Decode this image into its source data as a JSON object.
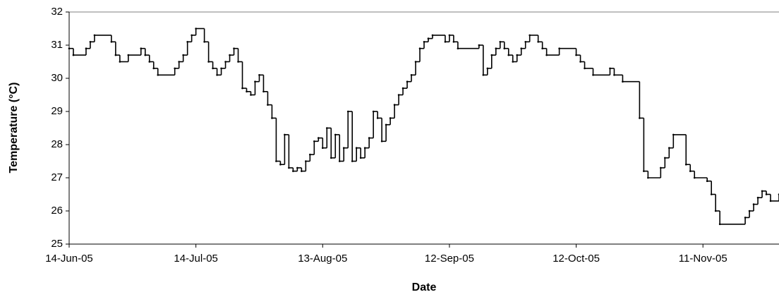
{
  "chart_data": {
    "type": "step-line",
    "step": "post",
    "x_axis_label": "Date",
    "y_axis_label": "Temperature (°C)",
    "xlim": [
      "2005-06-14",
      "2005-11-29"
    ],
    "xticks": [
      {
        "value": "2005-06-14",
        "label": "14-Jun-05"
      },
      {
        "value": "2005-07-14",
        "label": "14-Jul-05"
      },
      {
        "value": "2005-08-13",
        "label": "13-Aug-05"
      },
      {
        "value": "2005-09-12",
        "label": "12-Sep-05"
      },
      {
        "value": "2005-10-12",
        "label": "12-Oct-05"
      },
      {
        "value": "2005-11-11",
        "label": "11-Nov-05"
      }
    ],
    "ylim": [
      25,
      32
    ],
    "yticks": [
      25,
      26,
      27,
      28,
      29,
      30,
      31,
      32
    ],
    "grid": false,
    "series": [
      {
        "color": "#000000",
        "x": [
          "2005-06-14",
          "2005-06-15",
          "2005-06-18",
          "2005-06-19",
          "2005-06-20",
          "2005-06-24",
          "2005-06-25",
          "2005-06-26",
          "2005-06-28",
          "2005-07-01",
          "2005-07-02",
          "2005-07-03",
          "2005-07-04",
          "2005-07-05",
          "2005-07-09",
          "2005-07-10",
          "2005-07-11",
          "2005-07-12",
          "2005-07-13",
          "2005-07-14",
          "2005-07-16",
          "2005-07-17",
          "2005-07-18",
          "2005-07-19",
          "2005-07-20",
          "2005-07-21",
          "2005-07-22",
          "2005-07-23",
          "2005-07-24",
          "2005-07-25",
          "2005-07-26",
          "2005-07-27",
          "2005-07-28",
          "2005-07-29",
          "2005-07-30",
          "2005-07-31",
          "2005-08-01",
          "2005-08-02",
          "2005-08-03",
          "2005-08-04",
          "2005-08-05",
          "2005-08-06",
          "2005-08-07",
          "2005-08-08",
          "2005-08-09",
          "2005-08-10",
          "2005-08-11",
          "2005-08-12",
          "2005-08-13",
          "2005-08-14",
          "2005-08-15",
          "2005-08-16",
          "2005-08-17",
          "2005-08-18",
          "2005-08-19",
          "2005-08-20",
          "2005-08-21",
          "2005-08-22",
          "2005-08-23",
          "2005-08-24",
          "2005-08-25",
          "2005-08-26",
          "2005-08-27",
          "2005-08-28",
          "2005-08-29",
          "2005-08-30",
          "2005-08-31",
          "2005-09-01",
          "2005-09-02",
          "2005-09-03",
          "2005-09-04",
          "2005-09-05",
          "2005-09-06",
          "2005-09-07",
          "2005-09-08",
          "2005-09-11",
          "2005-09-12",
          "2005-09-13",
          "2005-09-14",
          "2005-09-19",
          "2005-09-20",
          "2005-09-21",
          "2005-09-22",
          "2005-09-23",
          "2005-09-24",
          "2005-09-25",
          "2005-09-26",
          "2005-09-27",
          "2005-09-28",
          "2005-09-29",
          "2005-09-30",
          "2005-10-01",
          "2005-10-03",
          "2005-10-04",
          "2005-10-05",
          "2005-10-08",
          "2005-10-12",
          "2005-10-13",
          "2005-10-14",
          "2005-10-16",
          "2005-10-20",
          "2005-10-21",
          "2005-10-23",
          "2005-10-27",
          "2005-10-28",
          "2005-10-29",
          "2005-11-01",
          "2005-11-02",
          "2005-11-03",
          "2005-11-04",
          "2005-11-07",
          "2005-11-08",
          "2005-11-09",
          "2005-11-12",
          "2005-11-13",
          "2005-11-14",
          "2005-11-15",
          "2005-11-21",
          "2005-11-22",
          "2005-11-23",
          "2005-11-24",
          "2005-11-25",
          "2005-11-26",
          "2005-11-27",
          "2005-11-29"
        ],
        "values": [
          30.9,
          30.7,
          30.9,
          31.1,
          31.3,
          31.1,
          30.7,
          30.5,
          30.7,
          30.9,
          30.7,
          30.5,
          30.3,
          30.1,
          30.3,
          30.5,
          30.7,
          31.1,
          31.3,
          31.5,
          31.1,
          30.5,
          30.3,
          30.1,
          30.3,
          30.5,
          30.7,
          30.9,
          30.5,
          29.7,
          29.6,
          29.5,
          29.9,
          30.1,
          29.6,
          29.2,
          28.8,
          27.5,
          27.4,
          28.3,
          27.3,
          27.2,
          27.3,
          27.2,
          27.5,
          27.7,
          28.1,
          28.2,
          27.9,
          28.5,
          27.6,
          28.3,
          27.5,
          27.9,
          29.0,
          27.5,
          27.9,
          27.6,
          27.9,
          28.2,
          29.0,
          28.8,
          28.1,
          28.6,
          28.8,
          29.2,
          29.5,
          29.7,
          29.9,
          30.1,
          30.5,
          30.9,
          31.1,
          31.2,
          31.3,
          31.1,
          31.3,
          31.1,
          30.9,
          31.0,
          30.1,
          30.3,
          30.7,
          30.9,
          31.1,
          30.9,
          30.7,
          30.5,
          30.7,
          30.9,
          31.1,
          31.3,
          31.1,
          30.9,
          30.7,
          30.9,
          30.7,
          30.5,
          30.3,
          30.1,
          30.3,
          30.1,
          29.9,
          28.8,
          27.2,
          27.0,
          27.3,
          27.6,
          27.9,
          28.3,
          27.4,
          27.2,
          27.0,
          26.9,
          26.5,
          26.0,
          25.6,
          25.8,
          26.0,
          26.2,
          26.4,
          26.6,
          26.5,
          26.3,
          26.5
        ]
      }
    ]
  }
}
